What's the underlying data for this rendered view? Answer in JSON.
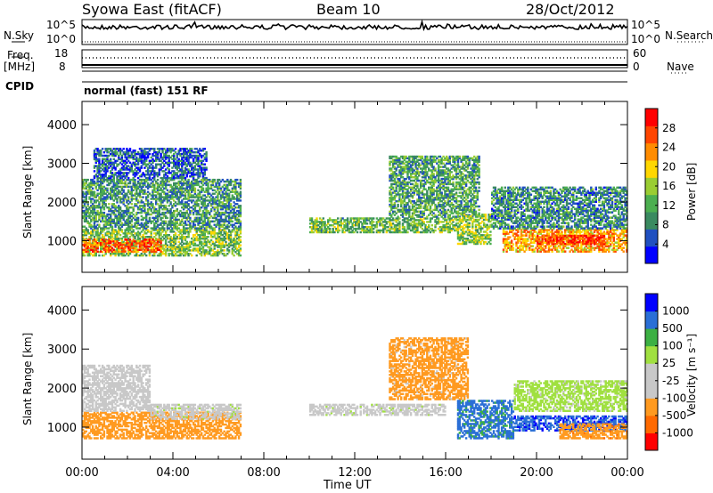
{
  "header": {
    "station": "Syowa East (fitACF)",
    "beam": "Beam 10",
    "date": "28/Oct/2012",
    "mode": "normal (fast) 151 RF"
  },
  "side_labels": {
    "nsky": "N.Sky",
    "nsearch": "N.Search",
    "freq": "Freq.",
    "freq_unit": "[MHz]",
    "nave": "Nave",
    "cpid": "CPID"
  },
  "mini_ticks": {
    "noise_left_top": "10^5",
    "noise_left_bottom": "10^0",
    "noise_right_top": "10^5",
    "noise_right_bottom": "10^0",
    "freq_left_top": "18",
    "freq_left_bottom": "8",
    "nave_right_top": "60",
    "nave_right_bottom": "0"
  },
  "colors": {
    "power_scale": [
      "#0000ff",
      "#2050c0",
      "#3a8a60",
      "#4caf50",
      "#9acd32",
      "#ffd700",
      "#ff8c00",
      "#ff4500",
      "#ff0000"
    ],
    "velocity_scale": [
      "#ff0000",
      "#ff6a00",
      "#ff9a20",
      "#c8c8c8",
      "#c8c8c8",
      "#a0e040",
      "#3cb043",
      "#2a6fd6",
      "#0000ff"
    ]
  },
  "chart_data": [
    {
      "type": "heatmap",
      "name": "Power",
      "ylabel": "Slant Range [km]",
      "ylim": [
        180,
        4600
      ],
      "yticks": [
        "1000",
        "2000",
        "3000",
        "4000"
      ],
      "xlim": [
        0,
        24
      ],
      "colorbar": {
        "label": "Power [dB]",
        "ticks": [
          "4",
          "8",
          "12",
          "16",
          "20",
          "24",
          "28"
        ],
        "range": [
          0,
          32
        ]
      },
      "echo_regions": [
        {
          "t0": 0.0,
          "t1": 7.0,
          "r0": 600,
          "r1": 1300,
          "value": 14
        },
        {
          "t0": 0.0,
          "t1": 3.5,
          "r0": 700,
          "r1": 1050,
          "value": 26
        },
        {
          "t0": 0.0,
          "t1": 7.0,
          "r0": 1300,
          "r1": 2600,
          "value": 10
        },
        {
          "t0": 0.5,
          "t1": 5.5,
          "r0": 2600,
          "r1": 3400,
          "value": 6
        },
        {
          "t0": 10.0,
          "t1": 16.5,
          "r0": 1200,
          "r1": 1600,
          "value": 13
        },
        {
          "t0": 13.5,
          "t1": 17.5,
          "r0": 1600,
          "r1": 3200,
          "value": 11
        },
        {
          "t0": 16.5,
          "t1": 18.0,
          "r0": 900,
          "r1": 1700,
          "value": 15
        },
        {
          "t0": 18.5,
          "t1": 24.0,
          "r0": 700,
          "r1": 1300,
          "value": 22
        },
        {
          "t0": 20.0,
          "t1": 23.0,
          "r0": 900,
          "r1": 1150,
          "value": 28
        },
        {
          "t0": 18.0,
          "t1": 24.0,
          "r0": 1300,
          "r1": 2400,
          "value": 9
        }
      ]
    },
    {
      "type": "heatmap",
      "name": "Velocity",
      "ylabel": "Slant Range [km]",
      "xlabel": "Time UT",
      "ylim": [
        180,
        4600
      ],
      "yticks": [
        "1000",
        "2000",
        "3000",
        "4000"
      ],
      "xlim": [
        0,
        24
      ],
      "xticks": [
        "00:00",
        "04:00",
        "08:00",
        "12:00",
        "16:00",
        "20:00",
        "00:00"
      ],
      "colorbar": {
        "label": "Velocity [m s⁻¹]",
        "ticks": [
          "1000",
          "500",
          "100",
          "25",
          "-25",
          "-100",
          "-500",
          "-1000"
        ]
      },
      "echo_regions": [
        {
          "t0": 0.0,
          "t1": 7.0,
          "r0": 700,
          "r1": 1400,
          "value": -300
        },
        {
          "t0": 3.0,
          "t1": 7.0,
          "r0": 1200,
          "r1": 1600,
          "value": 0
        },
        {
          "t0": 0.0,
          "t1": 3.0,
          "r0": 1400,
          "r1": 2600,
          "value": -30
        },
        {
          "t0": 10.0,
          "t1": 16.0,
          "r0": 1300,
          "r1": 1600,
          "value": 0
        },
        {
          "t0": 13.5,
          "t1": 17.0,
          "r0": 1700,
          "r1": 3300,
          "value": -150
        },
        {
          "t0": 16.5,
          "t1": 19.0,
          "r0": 700,
          "r1": 1700,
          "value": 600
        },
        {
          "t0": 19.0,
          "t1": 24.0,
          "r0": 900,
          "r1": 1300,
          "value": 900
        },
        {
          "t0": 21.0,
          "t1": 24.0,
          "r0": 700,
          "r1": 1100,
          "value": -400
        },
        {
          "t0": 19.0,
          "t1": 24.0,
          "r0": 1400,
          "r1": 2200,
          "value": 50
        }
      ]
    }
  ]
}
